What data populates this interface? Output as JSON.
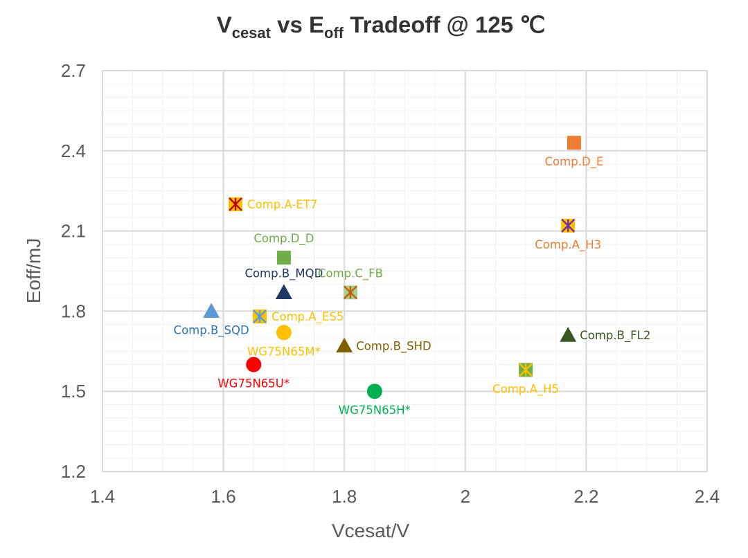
{
  "chart_data": {
    "type": "scatter",
    "title": {
      "main_v": "V",
      "sub_v": "cesat",
      "middle": " vs E",
      "sub_e": "off",
      "rest": " Tradeoff @ 125 ℃"
    },
    "xlabel": "Vcesat/V",
    "ylabel": "Eoff/mJ",
    "xlim": [
      1.4,
      2.4
    ],
    "ylim": [
      1.2,
      2.7
    ],
    "x_ticks": [
      "1.4",
      "1.6",
      "1.8",
      "2",
      "2.2",
      "2.4"
    ],
    "y_ticks": [
      "1.2",
      "1.5",
      "1.8",
      "2.1",
      "2.4",
      "2.7"
    ],
    "grid": true,
    "points": [
      {
        "name": "Comp.D_E",
        "x": 2.18,
        "y": 2.43,
        "marker": "square",
        "color": "#ED7D31",
        "label_color": "#ED7D31",
        "label_pos": "below"
      },
      {
        "name": "Comp.A-ET7",
        "x": 1.62,
        "y": 2.2,
        "marker": "x-square",
        "color": "#FFC000",
        "cross_color": "#C00000",
        "label_color": "#FFC000",
        "label_pos": "right"
      },
      {
        "name": "Comp.A_H3",
        "x": 2.17,
        "y": 2.12,
        "marker": "x-square",
        "color": "#FFC000",
        "cross_color": "#7030A0",
        "label_color": "#ED7D31",
        "label_pos": "below"
      },
      {
        "name": "Comp.D_D",
        "x": 1.7,
        "y": 2.0,
        "marker": "square",
        "color": "#70AD47",
        "label_color": "#70AD47",
        "label_pos": "above"
      },
      {
        "name": "Comp.B_MQD",
        "x": 1.7,
        "y": 1.87,
        "marker": "triangle",
        "color": "#203864",
        "label_color": "#203864",
        "label_pos": "above"
      },
      {
        "name": "Comp.C_FB",
        "x": 1.81,
        "y": 1.87,
        "marker": "x-square",
        "color": "#A9D18E",
        "cross_color": "#C55A11",
        "label_color": "#70AD47",
        "label_pos": "above"
      },
      {
        "name": "Comp.B_SQD",
        "x": 1.58,
        "y": 1.8,
        "marker": "triangle",
        "color": "#5B9BD5",
        "label_color": "#2E75B6",
        "label_pos": "below"
      },
      {
        "name": "Comp.A_ES5",
        "x": 1.66,
        "y": 1.78,
        "marker": "x-square",
        "color": "#FFC000",
        "cross_color": "#5B9BD5",
        "label_color": "#FFC000",
        "label_pos": "right"
      },
      {
        "name": "WG75N65M*",
        "x": 1.7,
        "y": 1.72,
        "marker": "circle",
        "color": "#FFC000",
        "label_color": "#FFC000",
        "label_pos": "below"
      },
      {
        "name": "Comp.B_FL2",
        "x": 2.17,
        "y": 1.71,
        "marker": "triangle",
        "color": "#375623",
        "label_color": "#375623",
        "label_pos": "right"
      },
      {
        "name": "Comp.B_SHD",
        "x": 1.8,
        "y": 1.67,
        "marker": "triangle",
        "color": "#7F6000",
        "label_color": "#7F6000",
        "label_pos": "right"
      },
      {
        "name": "WG75N65U*",
        "x": 1.65,
        "y": 1.6,
        "marker": "circle",
        "color": "#FF0000",
        "label_color": "#FF0000",
        "label_pos": "below"
      },
      {
        "name": "Comp.A_H5",
        "x": 2.1,
        "y": 1.58,
        "marker": "x-square",
        "color": "#70AD47",
        "cross_color": "#FFC000",
        "label_color": "#FFC000",
        "label_pos": "below"
      },
      {
        "name": "WG75N65H*",
        "x": 1.85,
        "y": 1.5,
        "marker": "circle",
        "color": "#00B050",
        "label_color": "#00B050",
        "label_pos": "below"
      }
    ]
  }
}
